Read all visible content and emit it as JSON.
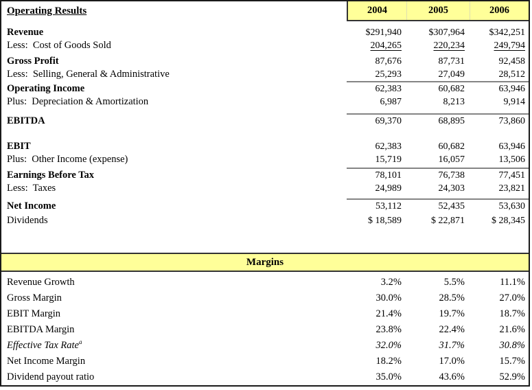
{
  "title": "Operating Results",
  "years": [
    "2004",
    "2005",
    "2006"
  ],
  "income_statement": {
    "rows": [
      {
        "label": "Revenue",
        "values": [
          "$291,940",
          "$307,964",
          "$342,251"
        ]
      },
      {
        "label": "Less:  Cost of Goods Sold",
        "values": [
          "204,265",
          "220,234",
          "249,794"
        ]
      },
      {
        "label": "Gross Profit",
        "values": [
          "87,676",
          "87,731",
          "92,458"
        ]
      },
      {
        "label": "Less:  Selling, General & Administrative",
        "values": [
          "25,293",
          "27,049",
          "28,512"
        ]
      },
      {
        "label": "Operating Income",
        "values": [
          "62,383",
          "60,682",
          "63,946"
        ]
      },
      {
        "label": "Plus:  Depreciation & Amortization",
        "values": [
          "6,987",
          "8,213",
          "9,914"
        ]
      },
      {
        "label": "EBITDA",
        "values": [
          "69,370",
          "68,895",
          "73,860"
        ]
      },
      {
        "label": "EBIT",
        "values": [
          "62,383",
          "60,682",
          "63,946"
        ]
      },
      {
        "label": "Plus:  Other Income (expense)",
        "values": [
          "15,719",
          "16,057",
          "13,506"
        ]
      },
      {
        "label": "Earnings Before Tax",
        "values": [
          "78,101",
          "76,738",
          "77,451"
        ]
      },
      {
        "label": "Less:  Taxes",
        "values": [
          "24,989",
          "24,303",
          "23,821"
        ]
      },
      {
        "label": "Net Income",
        "values": [
          "53,112",
          "52,435",
          "53,630"
        ]
      },
      {
        "label": "Dividends",
        "values": [
          "$ 18,589",
          "$ 22,871",
          "$ 28,345"
        ]
      }
    ]
  },
  "margins": {
    "header": "Margins",
    "rows": [
      {
        "label": "Revenue Growth",
        "values": [
          "3.2%",
          "5.5%",
          "11.1%"
        ]
      },
      {
        "label": "Gross Margin",
        "values": [
          "30.0%",
          "28.5%",
          "27.0%"
        ]
      },
      {
        "label": "EBIT Margin",
        "values": [
          "21.4%",
          "19.7%",
          "18.7%"
        ]
      },
      {
        "label": "EBITDA Margin",
        "values": [
          "23.8%",
          "22.4%",
          "21.6%"
        ]
      },
      {
        "label": "Effective Tax Rate",
        "superscript": "a",
        "values": [
          "32.0%",
          "31.7%",
          "30.8%"
        ]
      },
      {
        "label": "Net Income Margin",
        "values": [
          "18.2%",
          "17.0%",
          "15.7%"
        ]
      },
      {
        "label": "Dividend payout ratio",
        "values": [
          "35.0%",
          "43.6%",
          "52.9%"
        ]
      }
    ]
  },
  "colors": {
    "header_bg": "#FFFF99",
    "border": "#1A1A1A",
    "rule": "#848484",
    "cell_separator": "#DEDEB0",
    "text": "#000000"
  }
}
